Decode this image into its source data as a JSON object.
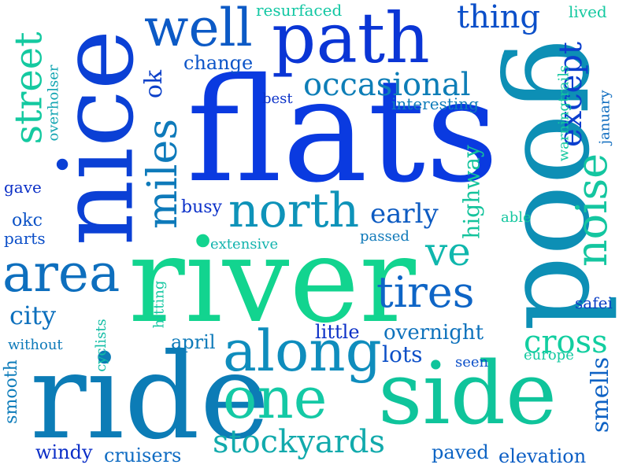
{
  "palette": {
    "blue": "#0a3fd9",
    "royal": "#1f4fd0",
    "teal": "#0e7fb0",
    "cyan": "#0a95b5",
    "seafoam": "#14c79a",
    "mint": "#1fd690",
    "navy": "#0b2fc6"
  },
  "words": [
    {
      "text": "flats",
      "color": "#0a3ae0"
    },
    {
      "text": "river",
      "color": "#12d48f"
    },
    {
      "text": "nice",
      "color": "#0b40d5"
    },
    {
      "text": "good",
      "color": "#0d8fb5"
    },
    {
      "text": "ride",
      "color": "#0c7cb6"
    },
    {
      "text": "side",
      "color": "#0fc49b"
    },
    {
      "text": "path",
      "color": "#0a35d5"
    },
    {
      "text": "along",
      "color": "#0f8dbd"
    },
    {
      "text": "one",
      "color": "#14c9a5"
    },
    {
      "text": "area",
      "color": "#0e6fbe"
    },
    {
      "text": "well",
      "color": "#0c5ac6"
    },
    {
      "text": "north",
      "color": "#0e93b9"
    },
    {
      "text": "noise",
      "color": "#14c6a0"
    },
    {
      "text": "tires",
      "color": "#0e65c6"
    },
    {
      "text": "street",
      "color": "#14c9a0"
    },
    {
      "text": "miles",
      "color": "#0e7aba"
    },
    {
      "text": "ve",
      "color": "#10b7ad"
    },
    {
      "text": "except",
      "color": "#0b3fce"
    },
    {
      "text": "occasional",
      "color": "#0e7eb7"
    },
    {
      "text": "thing",
      "color": "#0b4fc9"
    },
    {
      "text": "stockyards",
      "color": "#12aaac"
    },
    {
      "text": "cross",
      "color": "#12cea0"
    },
    {
      "text": "early",
      "color": "#0d5bc2"
    },
    {
      "text": "city",
      "color": "#0d70bd"
    },
    {
      "text": "ok",
      "color": "#0b40c9"
    },
    {
      "text": "smells",
      "color": "#0e62c4"
    },
    {
      "text": "change",
      "color": "#0c55c8"
    },
    {
      "text": "highway",
      "color": "#14c39c"
    },
    {
      "text": "lots",
      "color": "#0c4fc7"
    },
    {
      "text": "overnight",
      "color": "#0e72bc"
    },
    {
      "text": "cruisers",
      "color": "#0e6bc2"
    },
    {
      "text": "windy",
      "color": "#0b2ec7"
    },
    {
      "text": "paved",
      "color": "#0d64c4"
    },
    {
      "text": "elevation",
      "color": "#0c5ec4"
    },
    {
      "text": "smooth",
      "color": "#0d7cba"
    },
    {
      "text": "april",
      "color": "#0e7ab9"
    },
    {
      "text": "little",
      "color": "#0b2fc6"
    },
    {
      "text": "busy",
      "color": "#0b30c9"
    },
    {
      "text": "okc",
      "color": "#0b52c6"
    },
    {
      "text": "gave",
      "color": "#0b2fc6"
    },
    {
      "text": "parts",
      "color": "#0b4ec8"
    },
    {
      "text": "resurfaced",
      "color": "#12c7a3"
    },
    {
      "text": "lived",
      "color": "#14c9a0"
    },
    {
      "text": "interesting",
      "color": "#0e7cba"
    },
    {
      "text": "best",
      "color": "#0b32c8"
    },
    {
      "text": "extensive",
      "color": "#12b3ad"
    },
    {
      "text": "passed",
      "color": "#0e78b9"
    },
    {
      "text": "january",
      "color": "#0d6bbf"
    },
    {
      "text": "warningtrails",
      "color": "#14c79f"
    },
    {
      "text": "able",
      "color": "#14c79f"
    },
    {
      "text": "safei",
      "color": "#0b3fc6"
    },
    {
      "text": "overholser",
      "color": "#10a4b1"
    },
    {
      "text": "cyclists",
      "color": "#12bda5"
    },
    {
      "text": "hitting",
      "color": "#14c7a1"
    },
    {
      "text": "without",
      "color": "#0e7ab9"
    },
    {
      "text": "europe",
      "color": "#14c9a0"
    },
    {
      "text": "seen",
      "color": "#0b4fc9"
    }
  ]
}
